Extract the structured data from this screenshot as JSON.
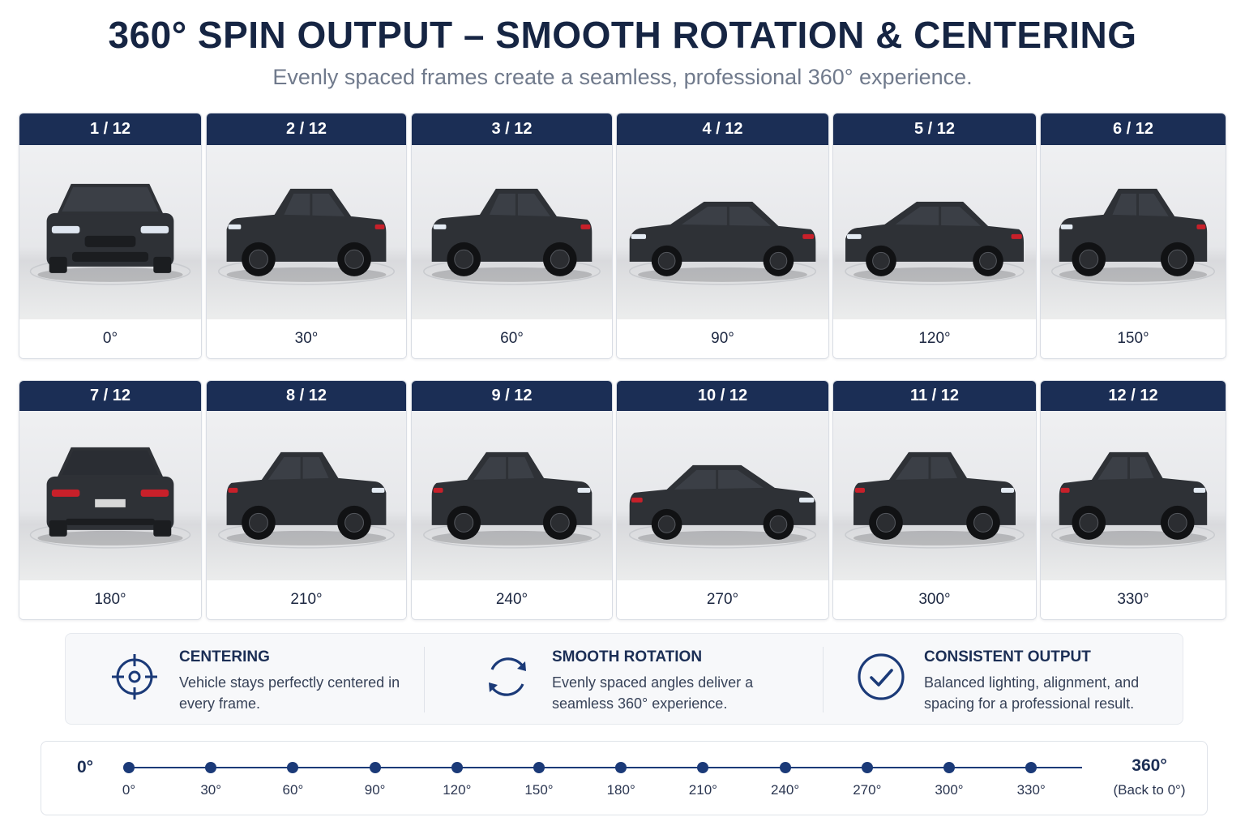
{
  "header": {
    "title": "360° SPIN OUTPUT – SMOOTH ROTATION & CENTERING",
    "subtitle": "Evenly spaced frames create a seamless, professional 360° experience."
  },
  "frames": [
    {
      "counter": "1 / 12",
      "angle": "0°",
      "view": "front"
    },
    {
      "counter": "2 / 12",
      "angle": "30°",
      "view": "front-three-quarter"
    },
    {
      "counter": "3 / 12",
      "angle": "60°",
      "view": "front-three-quarter"
    },
    {
      "counter": "4 / 12",
      "angle": "90°",
      "view": "side"
    },
    {
      "counter": "5 / 12",
      "angle": "120°",
      "view": "side"
    },
    {
      "counter": "6 / 12",
      "angle": "150°",
      "view": "rear-three-quarter"
    },
    {
      "counter": "7 / 12",
      "angle": "180°",
      "view": "rear"
    },
    {
      "counter": "8 / 12",
      "angle": "210°",
      "view": "rear-three-quarter"
    },
    {
      "counter": "9 / 12",
      "angle": "240°",
      "view": "rear-three-quarter"
    },
    {
      "counter": "10 / 12",
      "angle": "270°",
      "view": "side"
    },
    {
      "counter": "11 / 12",
      "angle": "300°",
      "view": "front-three-quarter"
    },
    {
      "counter": "12 / 12",
      "angle": "330°",
      "view": "front-three-quarter"
    }
  ],
  "features": [
    {
      "icon": "crosshair-icon",
      "title": "CENTERING",
      "text": "Vehicle stays perfectly centered in every frame."
    },
    {
      "icon": "rotation-arrows-icon",
      "title": "SMOOTH ROTATION",
      "text": "Evenly spaced angles deliver a seamless 360° experience."
    },
    {
      "icon": "check-circle-icon",
      "title": "CONSISTENT OUTPUT",
      "text": "Balanced lighting, alignment, and spacing for a professional result."
    }
  ],
  "timeline": {
    "start_label": "0°",
    "end_label": "360°",
    "end_sublabel": "(Back to 0°)",
    "ticks": [
      "0°",
      "30°",
      "60°",
      "90°",
      "120°",
      "150°",
      "180°",
      "210°",
      "240°",
      "270°",
      "300°",
      "330°"
    ]
  },
  "colors": {
    "header_navy": "#1b2e55",
    "accent_blue": "#1b3a78",
    "car_body": "#2e3136",
    "tail_light": "#c8202a"
  }
}
